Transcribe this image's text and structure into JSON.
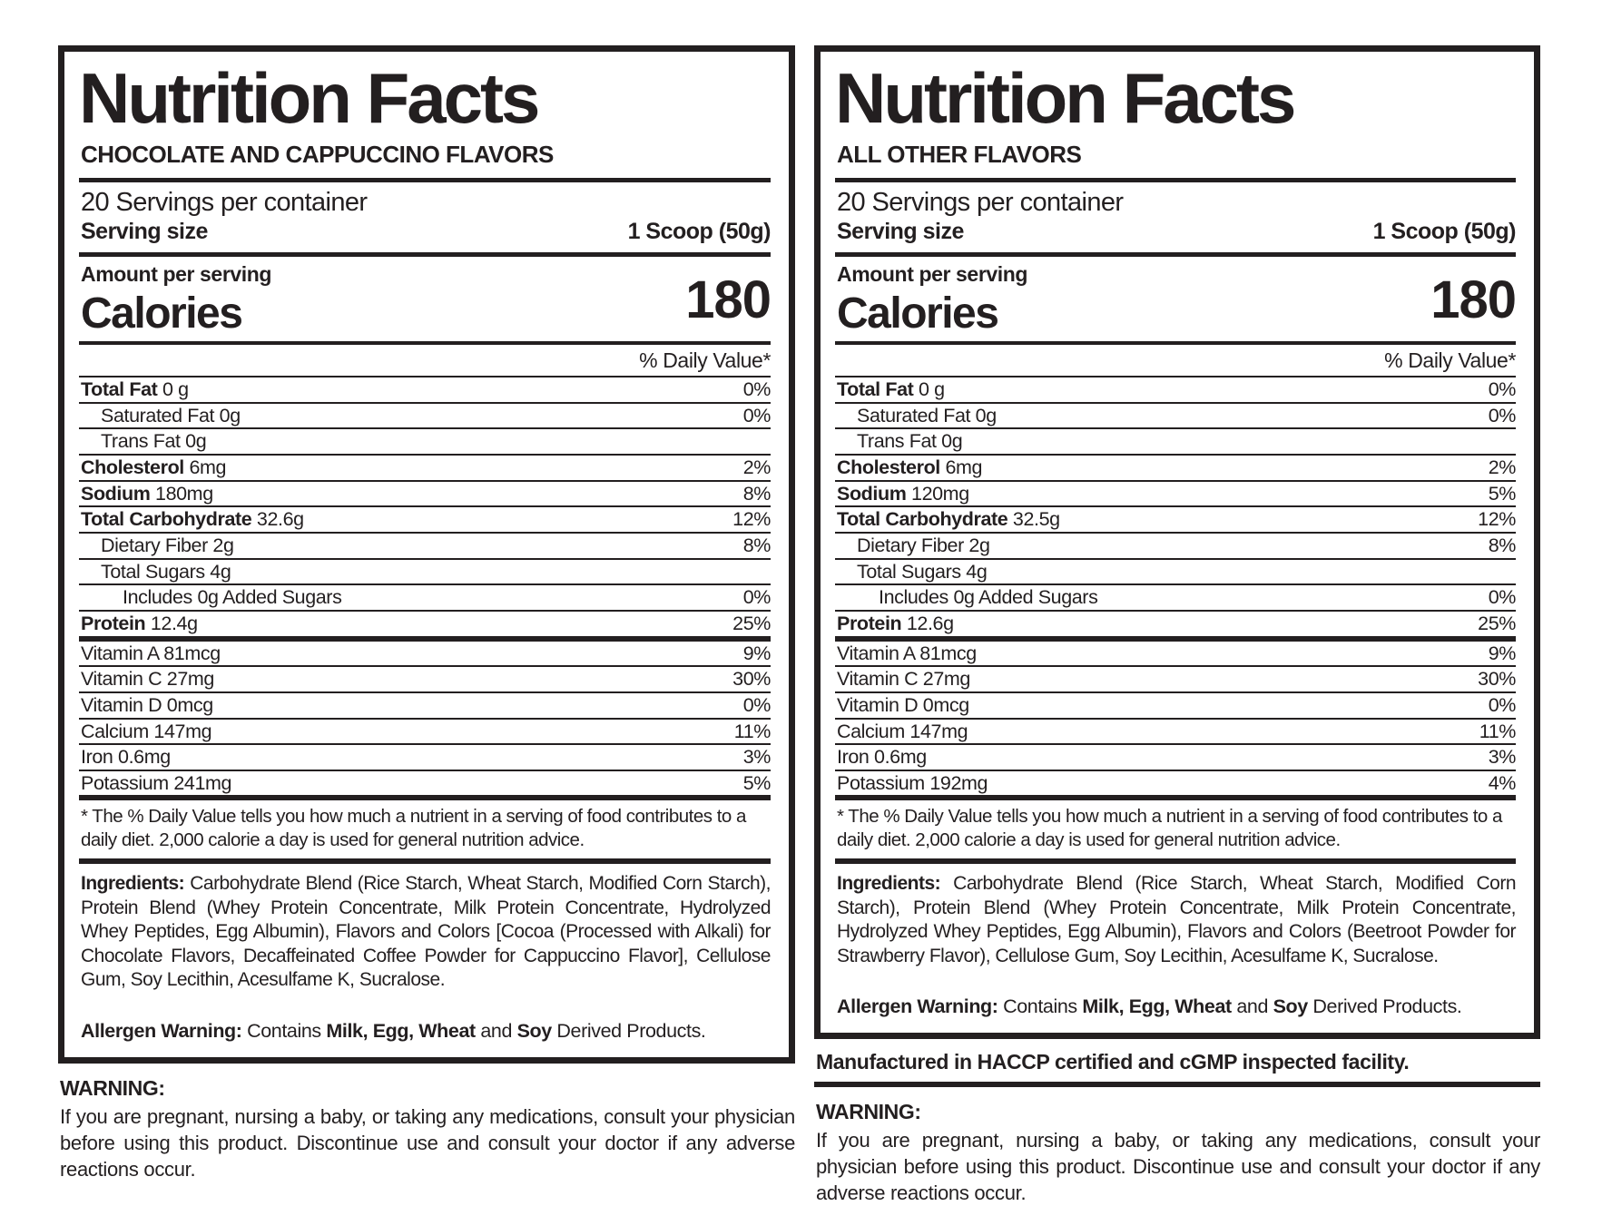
{
  "colors": {
    "ink": "#231f20",
    "paper": "#ffffff"
  },
  "left_panel": {
    "title": "Nutrition Facts",
    "flavor": "CHOCOLATE AND CAPPUCCINO FLAVORS",
    "servings_per_container": "20 Servings per container",
    "serving_size_label": "Serving size",
    "serving_size_value": "1 Scoop (50g)",
    "amount_per_serving": "Amount per serving",
    "calories_label": "Calories",
    "calories_value": "180",
    "daily_value_header": "% Daily Value*",
    "rows": [
      {
        "bold": "Total Fat",
        "text": "0 g",
        "dv": "0%",
        "indent": 0,
        "thick_below": false
      },
      {
        "bold": "",
        "text": "Saturated Fat 0g",
        "dv": "0%",
        "indent": 1,
        "thick_below": false
      },
      {
        "bold": "",
        "text": "Trans Fat 0g",
        "dv": "",
        "indent": 1,
        "thick_below": false
      },
      {
        "bold": "Cholesterol",
        "text": "6mg",
        "dv": "2%",
        "indent": 0,
        "thick_below": false
      },
      {
        "bold": "Sodium",
        "text": "180mg",
        "dv": "8%",
        "indent": 0,
        "thick_below": false
      },
      {
        "bold": "Total Carbohydrate",
        "text": "32.6g",
        "dv": "12%",
        "indent": 0,
        "thick_below": false
      },
      {
        "bold": "",
        "text": "Dietary Fiber 2g",
        "dv": "8%",
        "indent": 1,
        "thick_below": false
      },
      {
        "bold": "",
        "text": "Total Sugars 4g",
        "dv": "",
        "indent": 1,
        "thick_below": false
      },
      {
        "bold": "",
        "text": "Includes 0g Added Sugars",
        "dv": "0%",
        "indent": 2,
        "thick_below": false
      },
      {
        "bold": "Protein",
        "text": "12.4g",
        "dv": "25%",
        "indent": 0,
        "thick_below": true
      },
      {
        "bold": "",
        "text": "Vitamin A 81mcg",
        "dv": "9%",
        "indent": 0,
        "thick_below": false
      },
      {
        "bold": "",
        "text": "Vitamin C 27mg",
        "dv": "30%",
        "indent": 0,
        "thick_below": false
      },
      {
        "bold": "",
        "text": "Vitamin D 0mcg",
        "dv": "0%",
        "indent": 0,
        "thick_below": false
      },
      {
        "bold": "",
        "text": "Calcium 147mg",
        "dv": "11%",
        "indent": 0,
        "thick_below": false
      },
      {
        "bold": "",
        "text": "Iron 0.6mg",
        "dv": "3%",
        "indent": 0,
        "thick_below": false
      },
      {
        "bold": "",
        "text": "Potassium 241mg",
        "dv": "5%",
        "indent": 0,
        "thick_below": true
      }
    ],
    "footnote": "* The % Daily Value tells you how much a nutrient in a serving of food contributes to a daily diet. 2,000 calorie a day is used for general nutrition advice.",
    "ingredients_label": "Ingredients:",
    "ingredients_text": "Carbohydrate Blend (Rice Starch, Wheat Starch, Modified Corn Starch), Protein Blend (Whey Protein Concentrate, Milk Protein Concentrate, Hydrolyzed Whey Peptides, Egg Albumin), Flavors and Colors [Cocoa (Processed with Alkali) for Chocolate Flavors, Decaffeinated Coffee Powder for Cappuccino Flavor], Cellulose Gum, Soy Lecithin, Acesulfame K, Sucralose.",
    "allergen_segments": [
      {
        "t": "Allergen Warning:",
        "b": true
      },
      {
        "t": " Contains ",
        "b": false
      },
      {
        "t": "Milk, Egg, Wheat",
        "b": true
      },
      {
        "t": " and ",
        "b": false
      },
      {
        "t": "Soy",
        "b": true
      },
      {
        "t": " Derived Products.",
        "b": false
      }
    ],
    "warning_title": "WARNING:",
    "warning_text": "If you are pregnant, nursing a baby, or taking any medications, consult your physician before using this product. Discontinue use and consult your doctor if any adverse reactions occur."
  },
  "right_panel": {
    "title": "Nutrition Facts",
    "flavor": "ALL OTHER FLAVORS",
    "servings_per_container": "20 Servings per container",
    "serving_size_label": "Serving size",
    "serving_size_value": "1 Scoop (50g)",
    "amount_per_serving": "Amount per serving",
    "calories_label": "Calories",
    "calories_value": "180",
    "daily_value_header": "% Daily Value*",
    "rows": [
      {
        "bold": "Total Fat",
        "text": "0 g",
        "dv": "0%",
        "indent": 0,
        "thick_below": false
      },
      {
        "bold": "",
        "text": "Saturated Fat 0g",
        "dv": "0%",
        "indent": 1,
        "thick_below": false
      },
      {
        "bold": "",
        "text": "Trans Fat 0g",
        "dv": "",
        "indent": 1,
        "thick_below": false
      },
      {
        "bold": "Cholesterol",
        "text": "6mg",
        "dv": "2%",
        "indent": 0,
        "thick_below": false
      },
      {
        "bold": "Sodium",
        "text": "120mg",
        "dv": "5%",
        "indent": 0,
        "thick_below": false
      },
      {
        "bold": "Total Carbohydrate",
        "text": "32.5g",
        "dv": "12%",
        "indent": 0,
        "thick_below": false
      },
      {
        "bold": "",
        "text": "Dietary Fiber 2g",
        "dv": "8%",
        "indent": 1,
        "thick_below": false
      },
      {
        "bold": "",
        "text": "Total Sugars 4g",
        "dv": "",
        "indent": 1,
        "thick_below": false
      },
      {
        "bold": "",
        "text": "Includes 0g Added Sugars",
        "dv": "0%",
        "indent": 2,
        "thick_below": false
      },
      {
        "bold": "Protein",
        "text": "12.6g",
        "dv": "25%",
        "indent": 0,
        "thick_below": true
      },
      {
        "bold": "",
        "text": "Vitamin A 81mcg",
        "dv": "9%",
        "indent": 0,
        "thick_below": false
      },
      {
        "bold": "",
        "text": "Vitamin C 27mg",
        "dv": "30%",
        "indent": 0,
        "thick_below": false
      },
      {
        "bold": "",
        "text": "Vitamin D 0mcg",
        "dv": "0%",
        "indent": 0,
        "thick_below": false
      },
      {
        "bold": "",
        "text": "Calcium 147mg",
        "dv": "11%",
        "indent": 0,
        "thick_below": false
      },
      {
        "bold": "",
        "text": "Iron 0.6mg",
        "dv": "3%",
        "indent": 0,
        "thick_below": false
      },
      {
        "bold": "",
        "text": "Potassium 192mg",
        "dv": "4%",
        "indent": 0,
        "thick_below": true
      }
    ],
    "footnote": "* The % Daily Value tells you how much a nutrient in a serving of food contributes to a daily diet. 2,000 calorie a day is used for general nutrition advice.",
    "ingredients_label": "Ingredients:",
    "ingredients_text": "Carbohydrate Blend (Rice Starch, Wheat Starch, Modified Corn Starch), Protein Blend (Whey Protein Concentrate, Milk Protein Concentrate, Hydrolyzed Whey Peptides, Egg Albumin), Flavors and Colors (Beetroot Powder for Strawberry Flavor), Cellulose Gum, Soy Lecithin, Acesulfame K, Sucralose.",
    "allergen_segments": [
      {
        "t": "Allergen Warning:",
        "b": true
      },
      {
        "t": " Contains ",
        "b": false
      },
      {
        "t": "Milk, Egg, Wheat",
        "b": true
      },
      {
        "t": " and ",
        "b": false
      },
      {
        "t": "Soy",
        "b": true
      },
      {
        "t": " Derived Products.",
        "b": false
      }
    ],
    "manufactured": "Manufactured in HACCP certified and cGMP inspected facility.",
    "warning_title": "WARNING:",
    "warning_text": "If you are pregnant, nursing a baby, or taking any medications, consult your physician before using this product. Discontinue use and consult your doctor if any adverse reactions occur."
  }
}
